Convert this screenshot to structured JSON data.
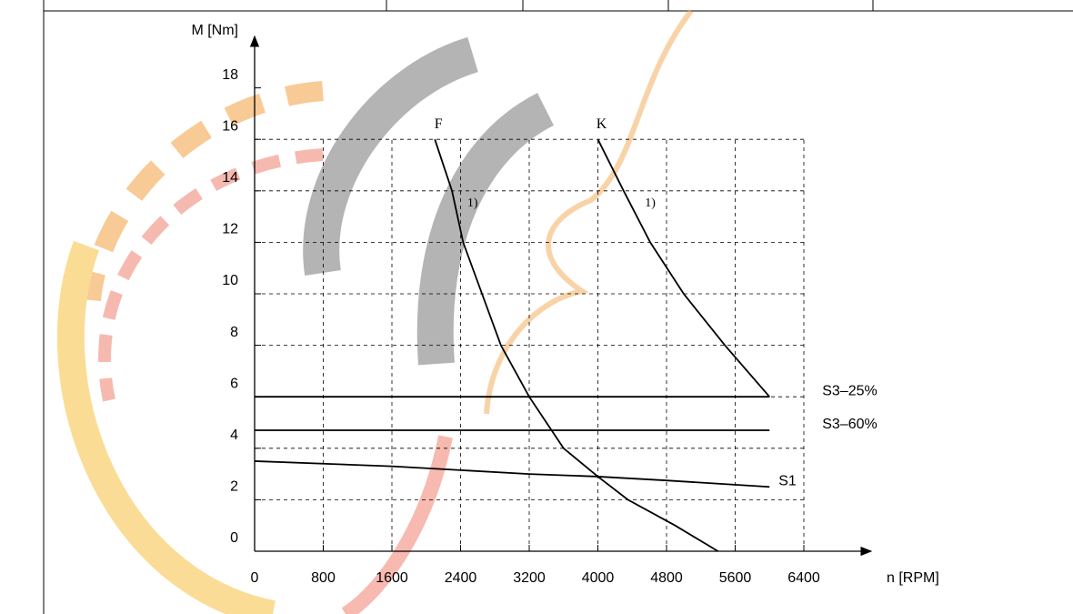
{
  "chart_data": {
    "type": "line",
    "x_label": "n [RPM]",
    "y_label": "M [Nm]",
    "xlim": [
      0,
      6400
    ],
    "ylim": [
      0,
      18
    ],
    "xticks": [
      0,
      800,
      1600,
      2400,
      3200,
      4000,
      4800,
      5600,
      6400
    ],
    "yticks": [
      0,
      2,
      4,
      6,
      8,
      10,
      12,
      14,
      16,
      18
    ],
    "grid": true,
    "series": [
      {
        "name": "S3–25%",
        "color": "#000000",
        "label_position": "end",
        "x": [
          0,
          6000
        ],
        "values": [
          6,
          6
        ]
      },
      {
        "name": "S3–60%",
        "color": "#000000",
        "label_position": "end",
        "x": [
          0,
          6000
        ],
        "values": [
          4.7,
          4.7
        ]
      },
      {
        "name": "S1",
        "color": "#000000",
        "label_position": "end",
        "x": [
          0,
          1600,
          3200,
          4000,
          4800,
          6000
        ],
        "values": [
          3.5,
          3.3,
          3.0,
          2.9,
          2.75,
          2.5
        ]
      },
      {
        "name": "F",
        "color": "#000000",
        "label_position": "start",
        "x": [
          2100,
          2300,
          2430,
          2650,
          2870,
          3200,
          3600,
          4000,
          4350,
          4900,
          5400
        ],
        "values": [
          16,
          14,
          12,
          10,
          8,
          6,
          4,
          2.9,
          2,
          1,
          0
        ]
      },
      {
        "name": "K",
        "color": "#000000",
        "label_position": "start",
        "x": [
          4000,
          4300,
          4610,
          5000,
          5480,
          6000
        ],
        "values": [
          16,
          14,
          12,
          10,
          8,
          6
        ]
      }
    ],
    "annotations": [
      {
        "text": "1)",
        "x": 2540,
        "y": 13.5
      },
      {
        "text": "1)",
        "x": 4610,
        "y": 13.5
      }
    ]
  }
}
